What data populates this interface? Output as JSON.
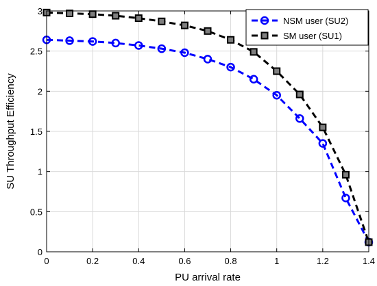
{
  "chart_data": {
    "type": "line",
    "title": "",
    "xlabel": "PU arrival rate",
    "ylabel": "SU Throughput Efficiency",
    "xlim": [
      0,
      1.4
    ],
    "ylim": [
      0,
      3
    ],
    "xticks": [
      0,
      0.2,
      0.4,
      0.6,
      0.8,
      1,
      1.2,
      1.4
    ],
    "yticks": [
      0,
      0.5,
      1,
      1.5,
      2,
      2.5,
      3
    ],
    "xtick_labels": [
      "0",
      "0.2",
      "0.4",
      "0.6",
      "0.8",
      "1",
      "1.2",
      "1.4"
    ],
    "ytick_labels": [
      "0",
      "0.5",
      "1",
      "1.5",
      "2",
      "2.5",
      "3"
    ],
    "grid": true,
    "legend_position": "top-right",
    "x": [
      0,
      0.1,
      0.2,
      0.3,
      0.4,
      0.5,
      0.6,
      0.7,
      0.8,
      0.9,
      1.0,
      1.1,
      1.2,
      1.3,
      1.4
    ],
    "series": [
      {
        "name": "NSM user (SU2)",
        "color": "#0000ff",
        "marker": "circle",
        "line_style": "dashed",
        "values": [
          2.64,
          2.63,
          2.62,
          2.6,
          2.57,
          2.53,
          2.48,
          2.4,
          2.3,
          2.15,
          1.95,
          1.66,
          1.35,
          0.67,
          0.12
        ]
      },
      {
        "name": "SM user (SU1)",
        "color": "#000000",
        "marker": "square",
        "line_style": "dashed",
        "values": [
          2.98,
          2.97,
          2.96,
          2.94,
          2.91,
          2.87,
          2.82,
          2.75,
          2.64,
          2.49,
          2.25,
          1.96,
          1.55,
          0.96,
          0.12
        ]
      }
    ]
  }
}
